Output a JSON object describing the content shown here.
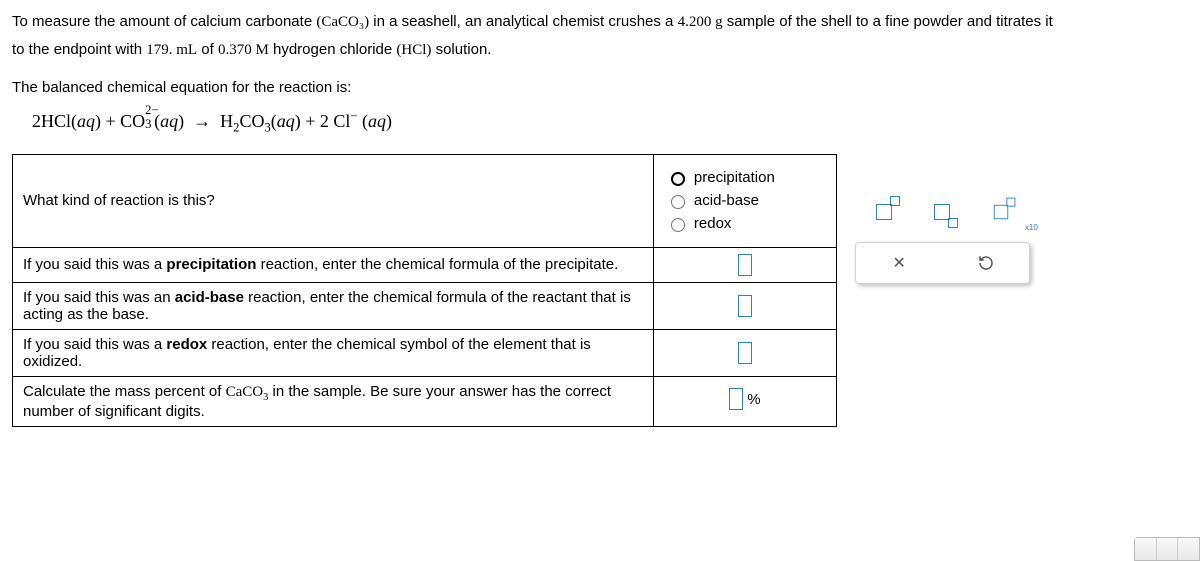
{
  "prompt": {
    "p1_a": "To measure the amount of calcium carbonate ",
    "formula1": "(CaCO₃)",
    "p1_b": " in a seashell, an analytical chemist crushes a ",
    "mass": "4.200 g",
    "p1_c": " sample of the shell to a fine powder and titrates it",
    "p2_a": "to the endpoint with ",
    "vol": "179. mL",
    "p2_b": " of ",
    "conc": "0.370 M",
    "p2_c": " hydrogen chloride ",
    "hcl": "(HCl)",
    "p2_d": " solution.",
    "p3": "The balanced chemical equation for the reaction is:"
  },
  "equation_html": "2HCl(<i>aq</i>) + CO<span style='position:relative'><sub style='position:absolute;left:0;top:0.5em'>3</sub><sup style='position:absolute;left:0;top:-0.6em'>2−</sup></span>&nbsp;&nbsp;(<i>aq</i>) &nbsp;→&nbsp; H<sub>2</sub>CO<sub>3</sub>(<i>aq</i>) + 2 Cl<sup>−</sup> (<i>aq</i>)",
  "table": {
    "rows": [
      {
        "q": "What kind of reaction is this?",
        "type": "radio",
        "options": [
          "precipitation",
          "acid-base",
          "redox"
        ]
      },
      {
        "q_html": "If you said this was a <b>precipitation</b> reaction, enter the chemical formula of the precipitate.",
        "type": "box"
      },
      {
        "q_html": "If you said this was an <b>acid-base</b> reaction, enter the chemical formula of the reactant that is acting as the base.",
        "type": "box"
      },
      {
        "q_html": "If you said this was a <b>redox</b> reaction, enter the chemical symbol of the element that is oxidized.",
        "type": "box"
      },
      {
        "q_html": "Calculate the mass percent of <span class='serif'>CaCO<sub>3</sub></span> in the sample. Be sure your answer has the correct number of significant digits.",
        "type": "percent",
        "suffix": "%"
      }
    ]
  },
  "toolbar": {
    "x_icon": "✕",
    "x10": "x10"
  }
}
